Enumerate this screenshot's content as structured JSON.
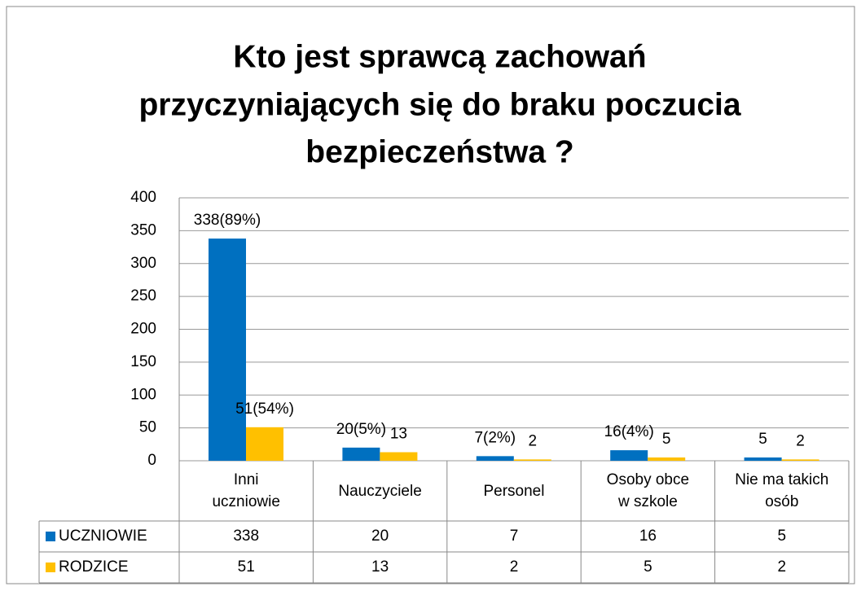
{
  "chart_data": {
    "type": "bar",
    "title": [
      "Kto jest sprawcą zachowań",
      "przyczyniających się do braku poczucia",
      "bezpieczeństwa ?"
    ],
    "categories": [
      "Inni\nuczniowie",
      "Nauczyciele",
      "Personel",
      "Osoby obce\nw szkole",
      "Nie ma takich\nosób"
    ],
    "series": [
      {
        "name": "UCZNIOWIE",
        "color": "#0070c0",
        "values": [
          338,
          20,
          7,
          16,
          5
        ],
        "value_labels": [
          "338(89%)",
          "20(5%)",
          "7(2%)",
          "16(4%)",
          "5"
        ]
      },
      {
        "name": "RODZICE",
        "color": "#ffc000",
        "values": [
          51,
          13,
          2,
          5,
          2
        ],
        "value_labels": [
          "51(54%)",
          "13",
          "2",
          "5",
          "2"
        ]
      }
    ],
    "ylim": [
      0,
      400
    ],
    "yticks": [
      0,
      50,
      100,
      150,
      200,
      250,
      300,
      350,
      400
    ],
    "grid": true,
    "data_table": true
  }
}
